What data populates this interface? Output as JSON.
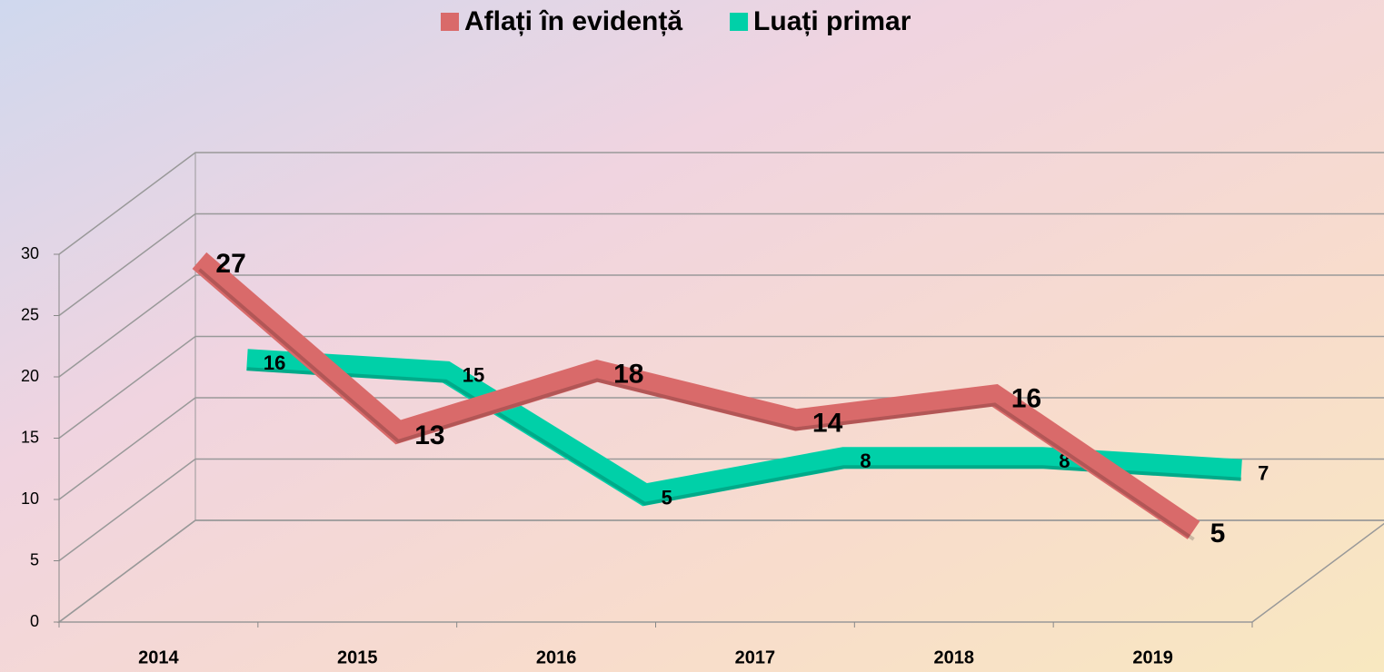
{
  "chart_data": {
    "type": "line3d",
    "categories": [
      "2014",
      "2015",
      "2016",
      "2017",
      "2018",
      "2019"
    ],
    "series": [
      {
        "name": "Aflați în evidență",
        "color": "#d96a6a",
        "values": [
          27,
          13,
          18,
          14,
          16,
          5
        ]
      },
      {
        "name": "Luați primar",
        "color": "#00d0a8",
        "values": [
          16,
          15,
          5,
          8,
          8,
          7
        ]
      }
    ],
    "ylim": [
      0,
      30
    ],
    "yticks": [
      0,
      5,
      10,
      15,
      20,
      25,
      30
    ],
    "grid": true,
    "legend": "top"
  }
}
